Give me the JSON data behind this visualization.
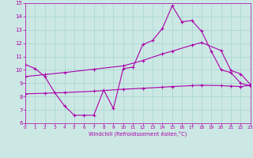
{
  "xlabel": "Windchill (Refroidissement éolien,°C)",
  "background_color": "#cce8e4",
  "grid_color": "#aad8d4",
  "line_color": "#aa00aa",
  "xlim": [
    0,
    23
  ],
  "ylim": [
    6,
    15
  ],
  "xticks": [
    0,
    1,
    2,
    3,
    4,
    5,
    6,
    7,
    8,
    9,
    10,
    11,
    12,
    13,
    14,
    15,
    16,
    17,
    18,
    19,
    20,
    21,
    22,
    23
  ],
  "yticks": [
    6,
    7,
    8,
    9,
    10,
    11,
    12,
    13,
    14,
    15
  ],
  "line1_x": [
    0,
    1,
    2,
    3,
    4,
    5,
    6,
    7,
    8,
    9,
    10,
    11,
    12,
    13,
    14,
    15,
    16,
    17,
    18,
    19,
    20,
    21,
    22,
    23
  ],
  "line1_y": [
    10.4,
    10.1,
    9.5,
    8.3,
    7.3,
    6.6,
    6.6,
    6.6,
    8.5,
    7.1,
    10.1,
    10.2,
    11.9,
    12.2,
    13.1,
    14.8,
    13.6,
    13.7,
    12.9,
    11.4,
    10.0,
    9.8,
    9.0,
    8.8
  ],
  "line2_x": [
    0,
    2,
    4,
    7,
    10,
    12,
    14,
    15,
    17,
    18,
    20,
    21,
    22,
    23
  ],
  "line2_y": [
    9.5,
    9.65,
    9.8,
    10.05,
    10.3,
    10.7,
    11.2,
    11.4,
    11.85,
    12.05,
    11.45,
    9.95,
    9.7,
    8.9
  ],
  "line3_x": [
    0,
    2,
    4,
    7,
    10,
    12,
    14,
    15,
    17,
    18,
    20,
    21,
    22,
    23
  ],
  "line3_y": [
    8.2,
    8.25,
    8.3,
    8.4,
    8.55,
    8.62,
    8.7,
    8.75,
    8.82,
    8.85,
    8.82,
    8.78,
    8.75,
    8.85
  ],
  "marker": "+"
}
